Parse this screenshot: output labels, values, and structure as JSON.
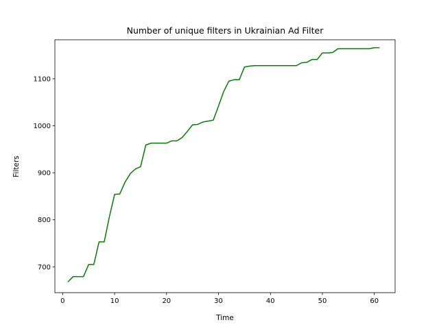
{
  "chart_data": {
    "type": "line",
    "title": "Number of unique filters in Ukrainian Ad Filter",
    "xlabel": "Time",
    "ylabel": "Filters",
    "xlim": [
      -1.5,
      64
    ],
    "ylim": [
      645,
      1183
    ],
    "xticks": [
      0,
      10,
      20,
      30,
      40,
      50,
      60
    ],
    "yticks": [
      700,
      800,
      900,
      1000,
      1100
    ],
    "grid": false,
    "legend": "none",
    "series": [
      {
        "color": "#008000",
        "x": [
          1,
          2,
          3,
          4,
          5,
          6,
          7,
          8,
          9,
          10,
          11,
          12,
          13,
          14,
          15,
          16,
          17,
          18,
          19,
          20,
          21,
          22,
          23,
          24,
          25,
          26,
          27,
          28,
          29,
          30,
          31,
          32,
          33,
          34,
          35,
          36,
          37,
          38,
          39,
          40,
          41,
          42,
          43,
          44,
          45,
          46,
          47,
          48,
          49,
          50,
          51,
          52,
          53,
          54,
          55,
          56,
          57,
          58,
          59,
          60,
          61
        ],
        "y": [
          668,
          679,
          679,
          679,
          705,
          705,
          753,
          753,
          807,
          854,
          855,
          880,
          898,
          908,
          913,
          959,
          963,
          963,
          963,
          963,
          968,
          968,
          975,
          988,
          1002,
          1003,
          1008,
          1010,
          1012,
          1042,
          1073,
          1095,
          1098,
          1098,
          1125,
          1127,
          1128,
          1128,
          1128,
          1128,
          1128,
          1128,
          1128,
          1128,
          1128,
          1134,
          1135,
          1141,
          1141,
          1155,
          1155,
          1156,
          1164,
          1164,
          1164,
          1164,
          1164,
          1164,
          1164,
          1166,
          1166
        ]
      }
    ]
  }
}
